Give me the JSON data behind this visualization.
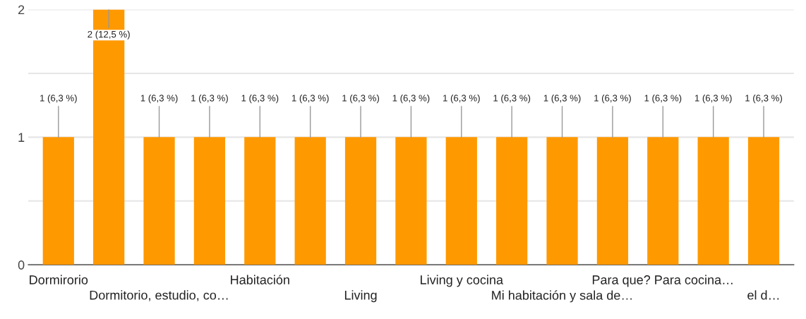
{
  "chart_data": {
    "type": "bar",
    "categories": [
      "Dormirorio",
      null,
      "Dormitorio, estudio, co…",
      null,
      "Habitación",
      null,
      "Living",
      null,
      "Living y cocina",
      null,
      "Mi habitación y sala de…",
      null,
      "Para que? Para cocina…",
      null,
      "el d…"
    ],
    "values": [
      1,
      2,
      1,
      1,
      1,
      1,
      1,
      1,
      1,
      1,
      1,
      1,
      1,
      1,
      1
    ],
    "value_labels": [
      "1 (6,3 %)",
      "2 (12,5 %)",
      "1 (6,3 %)",
      "1 (6,3 %)",
      "1 (6,3 %)",
      "1 (6,3 %)",
      "1 (6,3 %)",
      "1 (6,3 %)",
      "1 (6,3 %)",
      "1 (6,3 %)",
      "1 (6,3 %)",
      "1 (6,3 %)",
      "1 (6,3 %)",
      "1 (6,3 %)",
      "1 (6,3 %)"
    ],
    "color": "#ff9900",
    "ylim": [
      0,
      2
    ],
    "yticks": [
      0,
      {
        "value": 0.5,
        "label": null
      },
      1,
      {
        "value": 1.5,
        "label": null
      },
      2
    ],
    "grid": "y",
    "legend": false
  }
}
